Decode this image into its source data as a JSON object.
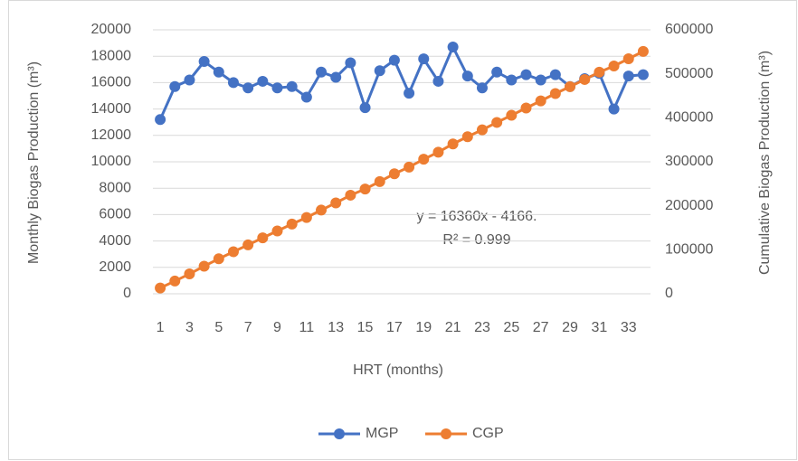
{
  "chart_data": {
    "type": "line",
    "categories": [
      "1",
      null,
      "3",
      null,
      "5",
      null,
      "7",
      null,
      "9",
      null,
      "11",
      null,
      "13",
      null,
      "15",
      null,
      "17",
      null,
      "19",
      null,
      "21",
      null,
      "23",
      null,
      "25",
      null,
      "27",
      null,
      "29",
      null,
      "31",
      null,
      "33",
      null
    ],
    "series": [
      {
        "name": "MGP",
        "color": "#4472c4",
        "axis": "y",
        "values": [
          13200,
          15700,
          16200,
          17600,
          16800,
          16000,
          15600,
          16100,
          15600,
          15700,
          14900,
          16800,
          16400,
          17500,
          14100,
          16900,
          17700,
          15200,
          17800,
          16100,
          18700,
          16500,
          15600,
          16800,
          16200,
          16600,
          16200,
          16600,
          15700,
          16300,
          16700,
          14000,
          16500,
          16600
        ]
      },
      {
        "name": "CGP",
        "color": "#ed7d31",
        "axis": "y2",
        "values": [
          13200,
          28900,
          45100,
          62700,
          79500,
          95500,
          111100,
          127200,
          142800,
          158500,
          173400,
          190200,
          206600,
          224100,
          238200,
          255100,
          272800,
          288000,
          305800,
          321900,
          340600,
          357100,
          372700,
          389500,
          405700,
          422300,
          438500,
          455100,
          470800,
          487100,
          503800,
          517800,
          534300,
          550900
        ]
      }
    ],
    "xlabel": "HRT (months)",
    "ylabel": "Monthly Biogas Production (m³)",
    "y2label": "Cumulative Biogas Production (m³)",
    "ylim": [
      0,
      20000
    ],
    "yticks": [
      0,
      2000,
      4000,
      6000,
      8000,
      10000,
      12000,
      14000,
      16000,
      18000,
      20000
    ],
    "y2lim": [
      0,
      600000
    ],
    "y2ticks": [
      0,
      100000,
      200000,
      300000,
      400000,
      500000,
      600000
    ],
    "annotations": [
      "y = 16360x - 4166.",
      "R² = 0.999"
    ],
    "grid": true,
    "legend": "bottom"
  }
}
